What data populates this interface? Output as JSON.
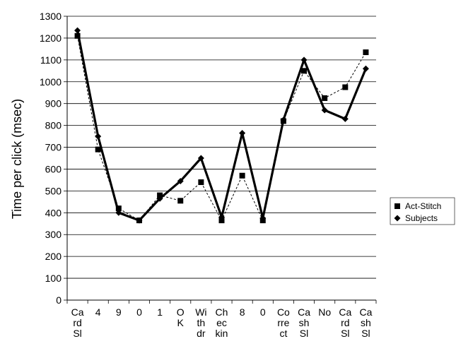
{
  "chart_data": {
    "type": "line",
    "title": "",
    "xlabel": "",
    "ylabel": "Time per click (msec)",
    "ylim": [
      0,
      1300
    ],
    "ytick_step": 100,
    "grid": "horizontal",
    "legend_position": "right",
    "categories": [
      [
        "Ca",
        "rd",
        "Sl"
      ],
      [
        "4"
      ],
      [
        "9"
      ],
      [
        "0"
      ],
      [
        "1"
      ],
      [
        "O",
        "K"
      ],
      [
        "Wi",
        "th",
        "dr"
      ],
      [
        "Ch",
        "ec",
        "kin"
      ],
      [
        "8"
      ],
      [
        "0"
      ],
      [
        "Co",
        "rre",
        "ct"
      ],
      [
        "Ca",
        "sh",
        "Sl"
      ],
      [
        "No"
      ],
      [
        "Ca",
        "rd",
        "Sl"
      ],
      [
        "Ca",
        "sh",
        "Sl"
      ]
    ],
    "series": [
      {
        "name": "Act-Stitch",
        "marker": "square",
        "line": "dashed",
        "values": [
          1210,
          690,
          420,
          365,
          480,
          455,
          540,
          365,
          570,
          365,
          820,
          1050,
          925,
          975,
          1135
        ]
      },
      {
        "name": "Subjects",
        "marker": "diamond",
        "line": "solid-bold",
        "values": [
          1235,
          750,
          400,
          365,
          465,
          545,
          650,
          380,
          765,
          375,
          825,
          1100,
          870,
          830,
          1060
        ]
      }
    ],
    "colors": {
      "lines": "#000000",
      "grid": "#000000",
      "background": "#ffffff"
    }
  }
}
